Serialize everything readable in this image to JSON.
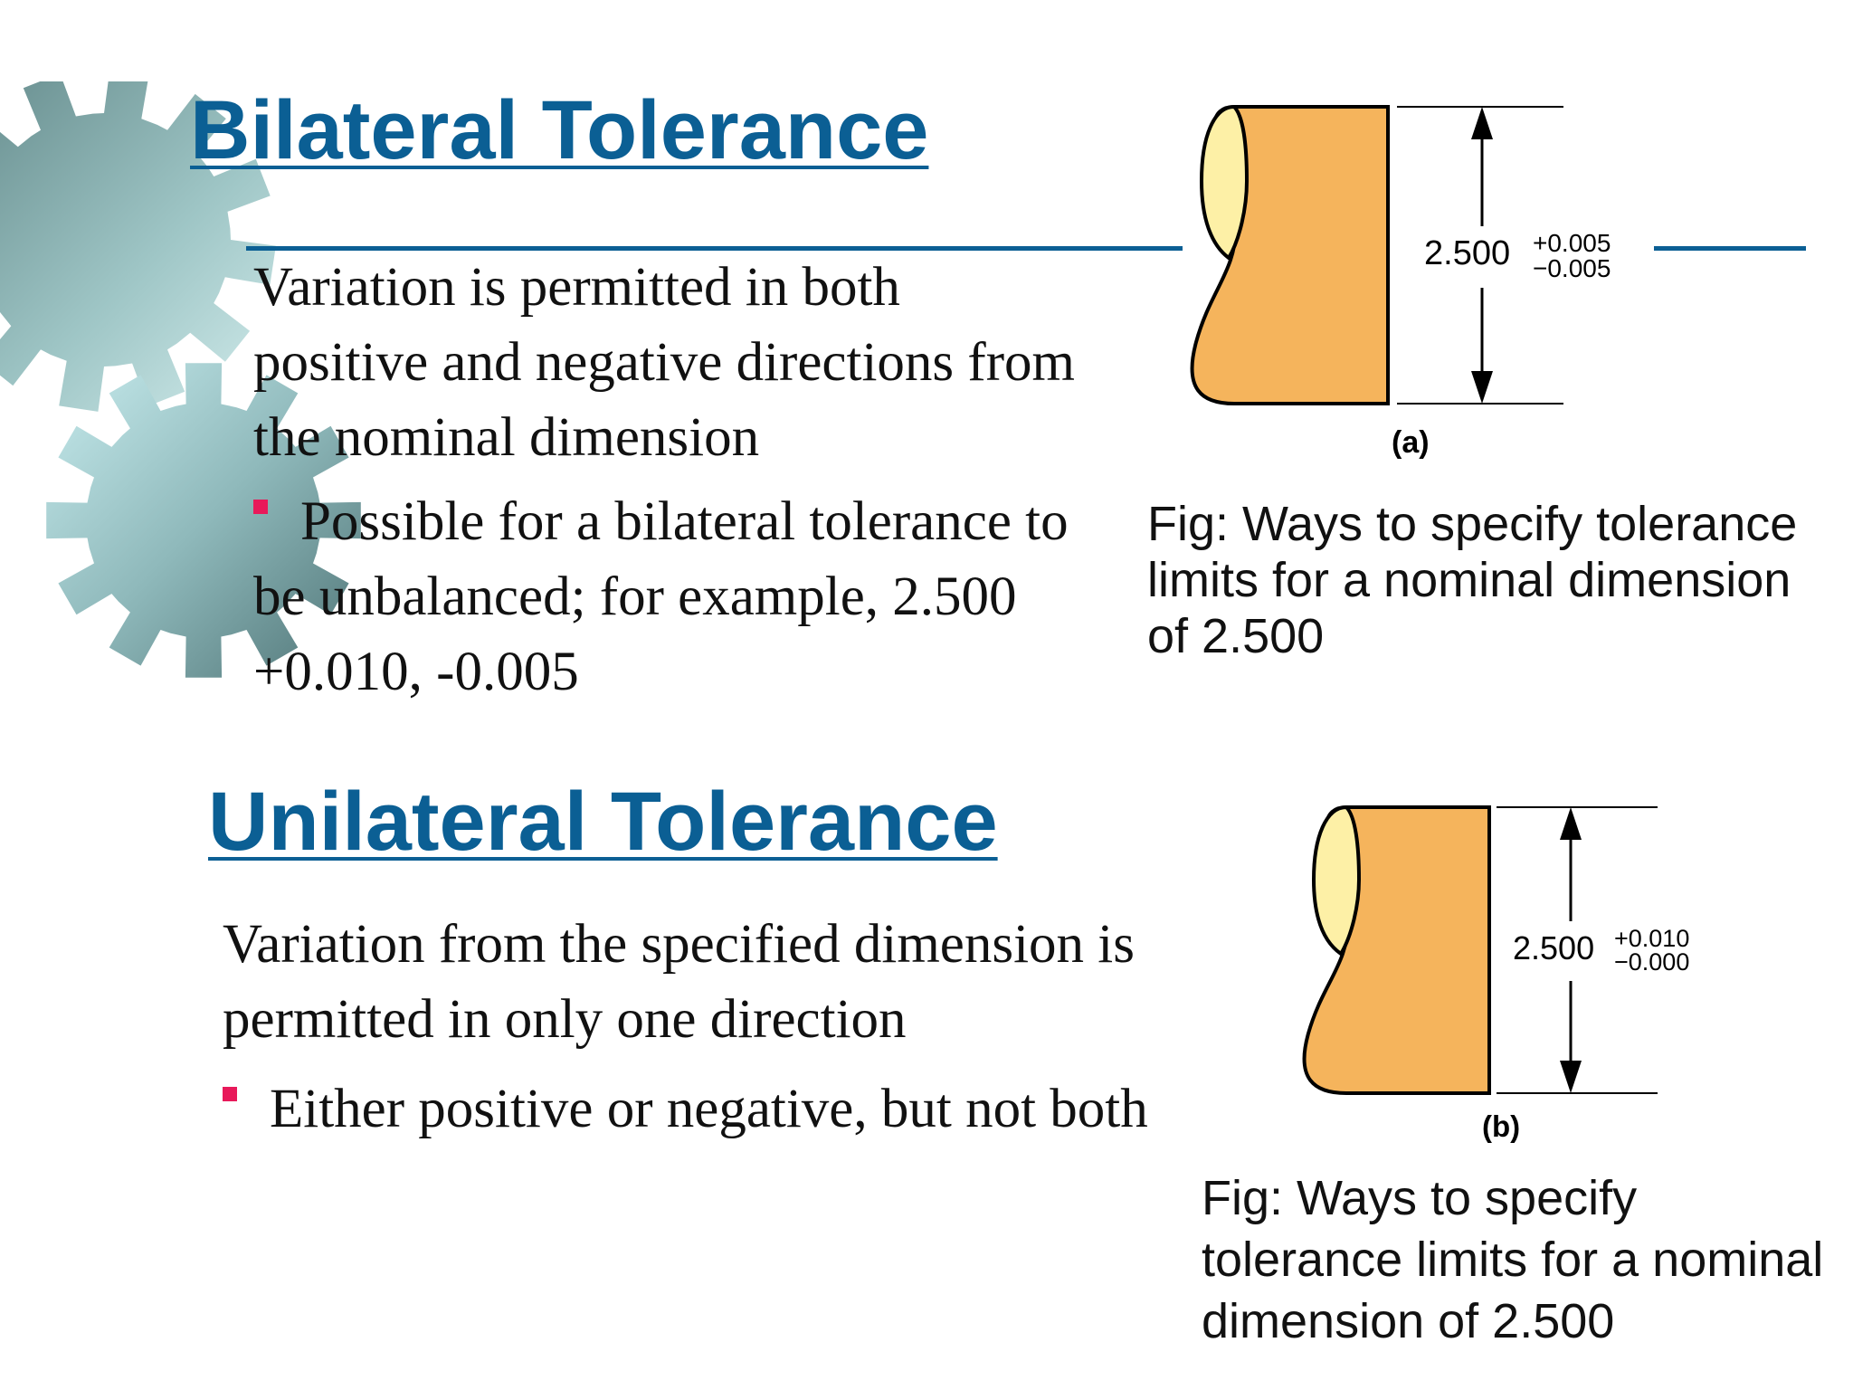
{
  "bilateral": {
    "heading": "Bilateral Tolerance",
    "body": "Variation is permitted in both positive and negative directions from the nominal dimension",
    "bullet": "Possible for a bilateral tolerance to be unbalanced; for example, 2.500 +0.010, -0.005",
    "figure": {
      "nominal": "2.500",
      "upper": "+0.005",
      "lower": "−0.005",
      "label": "(a)"
    },
    "caption": "Fig: Ways to specify tolerance limits for a nominal dimension of 2.500"
  },
  "unilateral": {
    "heading": "Unilateral Tolerance",
    "body": "Variation from the specified dimension is permitted in only one direction",
    "bullet": "Either positive or negative, but not both",
    "figure": {
      "nominal": "2.500",
      "upper": "+0.010",
      "lower": "−0.000",
      "label": "(b)"
    },
    "caption": "Fig: Ways to specify tolerance limits for a nominal dimension of 2.500"
  },
  "colors": {
    "heading": "#0b5f94",
    "bullet": "#e8195a",
    "part_fill": "#f5b45c",
    "part_end": "#fdf0a6"
  }
}
